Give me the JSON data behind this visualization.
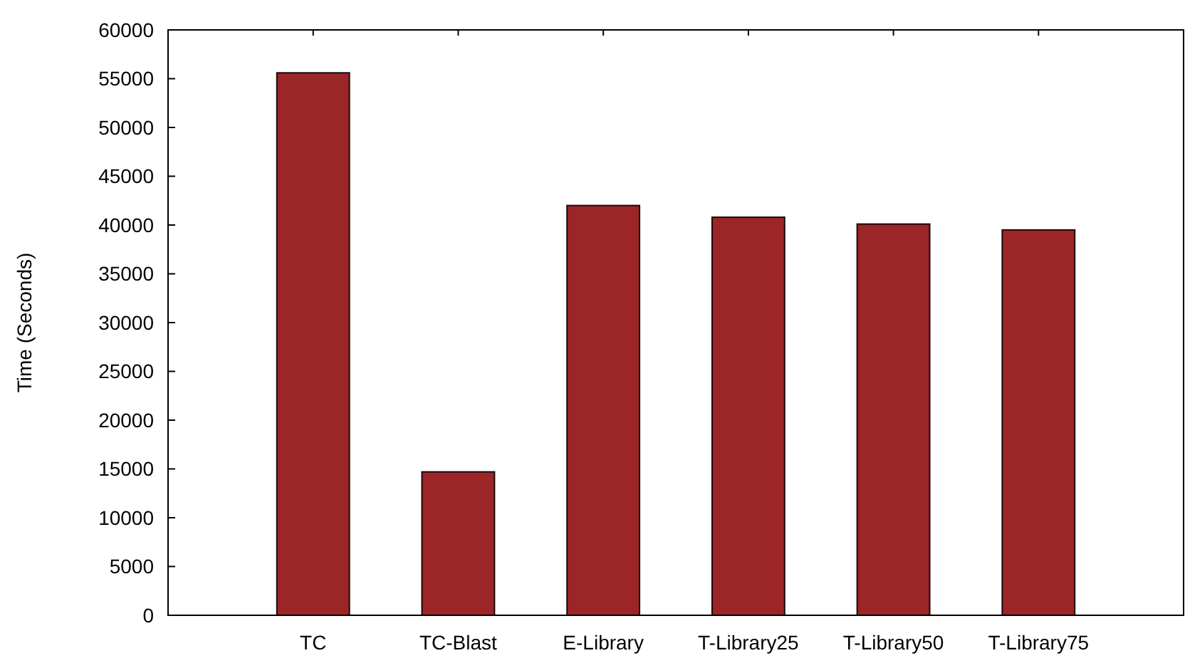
{
  "chart_data": {
    "type": "bar",
    "ylabel": "Time (Seconds)",
    "categories": [
      "TC",
      "TC-Blast",
      "E-Library",
      "T-Library25",
      "T-Library50",
      "T-Library75"
    ],
    "values": [
      55600,
      14700,
      42000,
      40800,
      40100,
      39500
    ],
    "color": "#9b2527",
    "ylim": [
      0,
      60000
    ],
    "yticks": [
      0,
      5000,
      10000,
      15000,
      20000,
      25000,
      30000,
      35000,
      40000,
      45000,
      50000,
      55000,
      60000
    ],
    "grid": false
  }
}
